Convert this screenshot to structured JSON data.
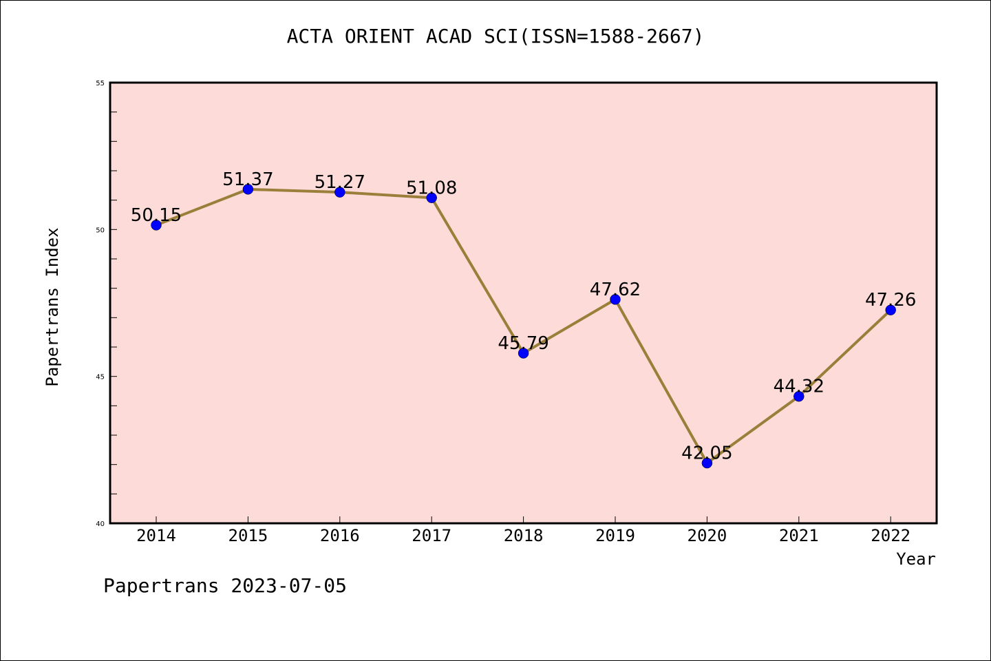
{
  "chart_data": {
    "type": "line",
    "title": "ACTA ORIENT ACAD SCI(ISSN=1588-2667)",
    "xlabel": "Year",
    "ylabel": "Papertrans Index",
    "categories": [
      "2014",
      "2015",
      "2016",
      "2017",
      "2018",
      "2019",
      "2020",
      "2021",
      "2022"
    ],
    "values": [
      50.15,
      51.37,
      51.27,
      51.08,
      45.79,
      47.62,
      42.05,
      44.32,
      47.26
    ],
    "data_labels": [
      "50.15",
      "51.37",
      "51.27",
      "51.08",
      "45.79",
      "47.62",
      "42.05",
      "44.32",
      "47.26"
    ],
    "ylim": [
      40,
      55
    ],
    "y_ticks": [
      "40",
      "45",
      "50",
      "55"
    ],
    "grid": false,
    "line_color": "#9a7f3a",
    "marker_color": "#0000ff",
    "plot_background": "#fddbd8"
  },
  "footer": "Papertrans 2023-07-05"
}
